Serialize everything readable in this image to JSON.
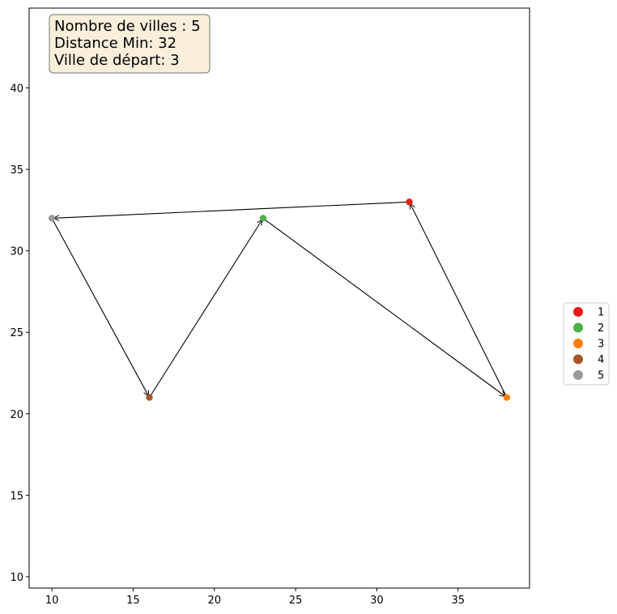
{
  "info_box": {
    "line1": "Nombre de villes : 5",
    "line2": "Distance Min: 32",
    "line3": "Ville de départ: 3"
  },
  "chart_data": {
    "type": "scatter",
    "title": "",
    "xlabel": "",
    "ylabel": "",
    "xlim": [
      8.6,
      39.4
    ],
    "ylim": [
      9.3,
      44.9
    ],
    "xticks": [
      10,
      15,
      20,
      25,
      30,
      35
    ],
    "yticks": [
      10,
      15,
      20,
      25,
      30,
      35,
      40
    ],
    "grid": false,
    "legend_position": "outside-right",
    "series": [
      {
        "name": "1",
        "x": 32,
        "y": 33,
        "color": "#e41a1c"
      },
      {
        "name": "2",
        "x": 23,
        "y": 32,
        "color": "#4daf4a"
      },
      {
        "name": "3",
        "x": 38,
        "y": 21,
        "color": "#ff7f00"
      },
      {
        "name": "4",
        "x": 16,
        "y": 21,
        "color": "#a65628"
      },
      {
        "name": "5",
        "x": 10,
        "y": 32,
        "color": "#999999"
      }
    ],
    "route": [
      3,
      1,
      5,
      4,
      2,
      3
    ]
  },
  "colors": {
    "info_box_bg": "#f9efdb",
    "info_box_border": "#8a8a8a",
    "arrow": "#000000"
  }
}
